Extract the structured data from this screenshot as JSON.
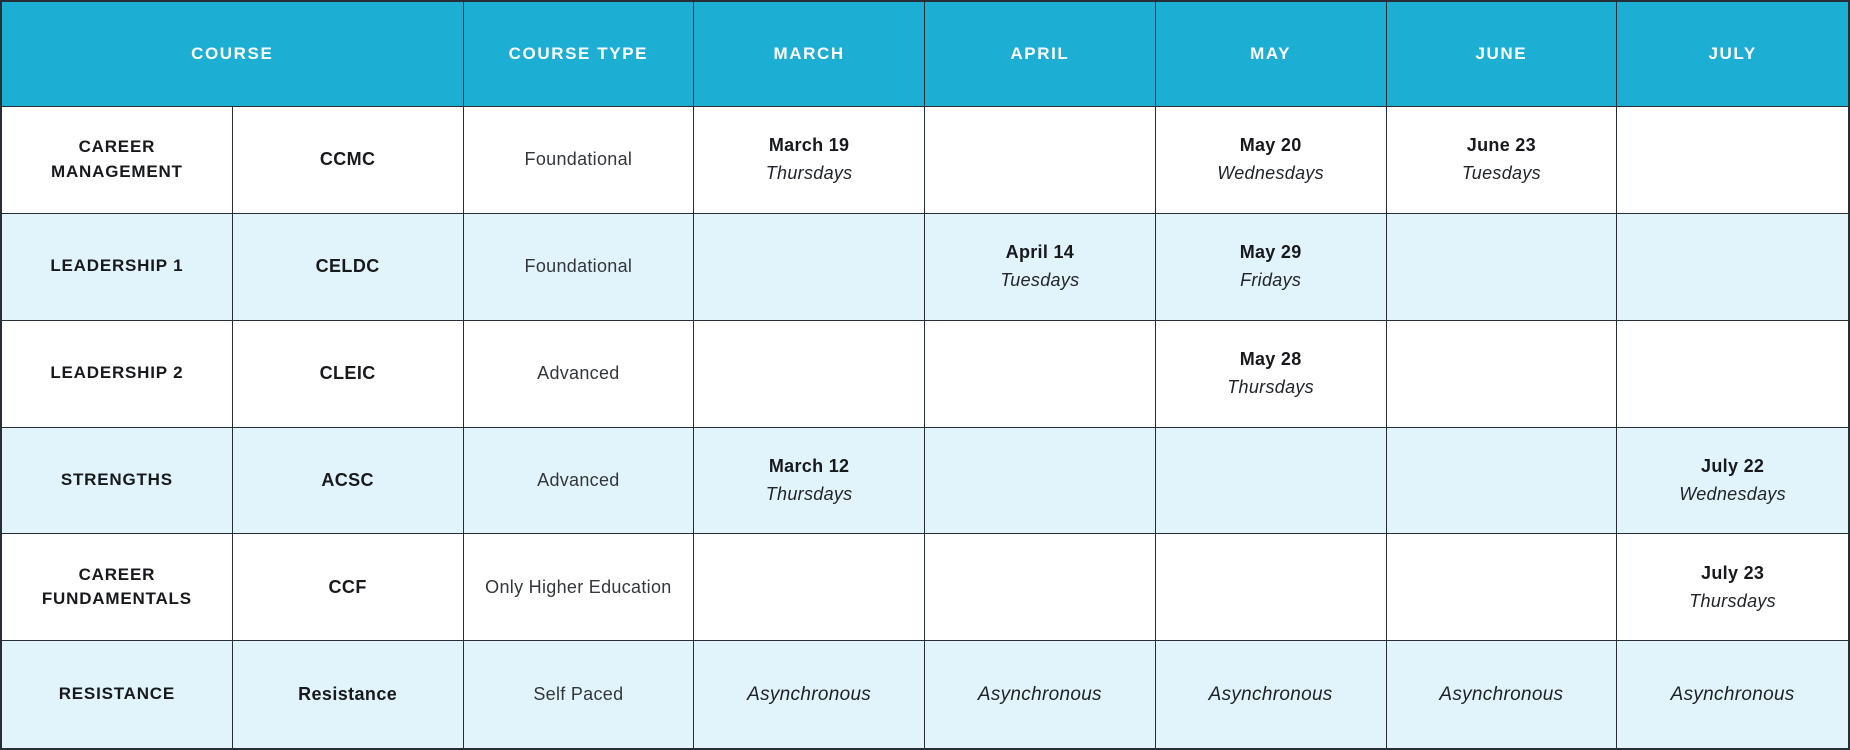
{
  "colors": {
    "header_bg": "#1CAED3",
    "header_text": "#FFFFFF",
    "row_bg": "#FFFFFF",
    "row_alt_bg": "#E2F4FB",
    "border": "#272E36"
  },
  "table": {
    "header": {
      "course": "COURSE",
      "course_type": "COURSE TYPE",
      "months": [
        "MARCH",
        "APRIL",
        "MAY",
        "JUNE",
        "JULY"
      ]
    },
    "rows": [
      {
        "name": "CAREER MANAGEMENT",
        "code": "CCMC",
        "type": "Foundational",
        "schedule": [
          {
            "date": "March 19",
            "day": "Thursdays"
          },
          {},
          {
            "date": "May 20",
            "day": "Wednesdays"
          },
          {
            "date": "June 23",
            "day": "Tuesdays"
          },
          {}
        ]
      },
      {
        "name": "LEADERSHIP 1",
        "code": "CELDC",
        "type": "Foundational",
        "schedule": [
          {},
          {
            "date": "April 14",
            "day": "Tuesdays"
          },
          {
            "date": "May 29",
            "day": "Fridays"
          },
          {},
          {}
        ]
      },
      {
        "name": "LEADERSHIP 2",
        "code": "CLEIC",
        "type": "Advanced",
        "schedule": [
          {},
          {},
          {
            "date": "May 28",
            "day": "Thursdays"
          },
          {},
          {}
        ]
      },
      {
        "name": "STRENGTHS",
        "code": "ACSC",
        "type": "Advanced",
        "schedule": [
          {
            "date": "March 12",
            "day": "Thursdays"
          },
          {},
          {},
          {},
          {
            "date": "July 22",
            "day": "Wednesdays"
          }
        ]
      },
      {
        "name": "CAREER FUNDAMENTALS",
        "code": "CCF",
        "type": "Only Higher Education",
        "schedule": [
          {},
          {},
          {},
          {},
          {
            "date": "July 23",
            "day": "Thursdays"
          }
        ]
      },
      {
        "name": "RESISTANCE",
        "code": "Resistance",
        "type": "Self Paced",
        "schedule": [
          {
            "async": "Asynchronous"
          },
          {
            "async": "Asynchronous"
          },
          {
            "async": "Asynchronous"
          },
          {
            "async": "Asynchronous"
          },
          {
            "async": "Asynchronous"
          }
        ]
      }
    ]
  }
}
